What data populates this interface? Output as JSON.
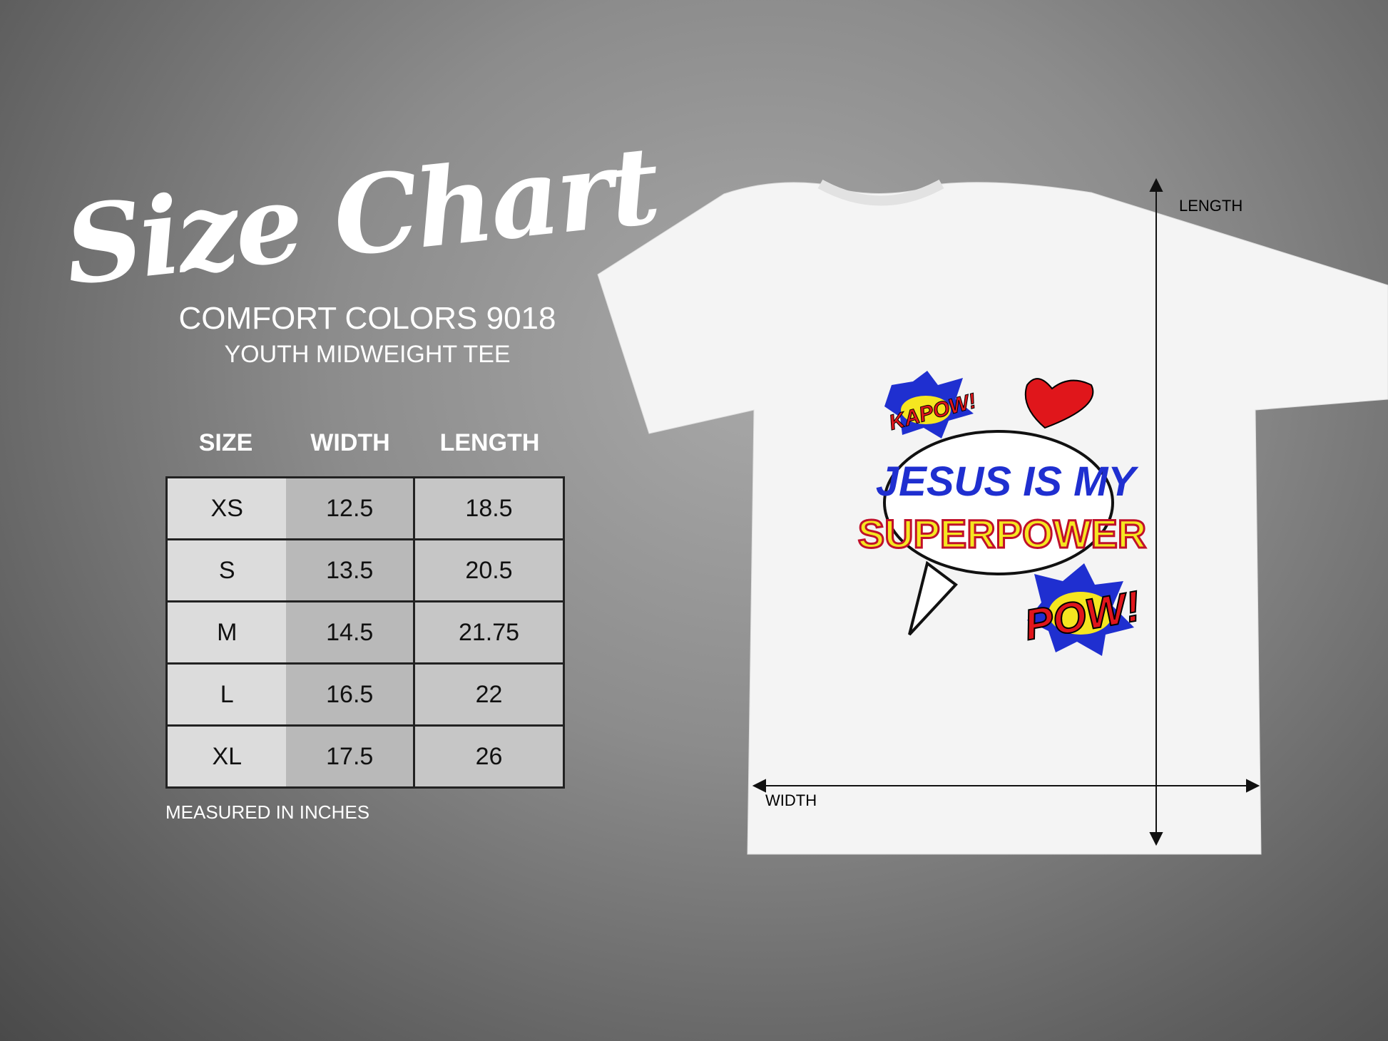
{
  "title": "Size Chart",
  "brand": "COMFORT COLORS 9018",
  "subtitle": "YOUTH MIDWEIGHT TEE",
  "table": {
    "headers": [
      "SIZE",
      "WIDTH",
      "LENGTH"
    ],
    "rows": [
      [
        "XS",
        "12.5",
        "18.5"
      ],
      [
        "S",
        "13.5",
        "20.5"
      ],
      [
        "M",
        "14.5",
        "21.75"
      ],
      [
        "L",
        "16.5",
        "22"
      ],
      [
        "XL",
        "17.5",
        "26"
      ]
    ]
  },
  "note": "MEASURED IN INCHES",
  "shirt": {
    "length_label": "LENGTH",
    "width_label": "WIDTH",
    "graphic": {
      "kapow": "KAPOW!",
      "line1": "JESUS IS MY",
      "line2": "SUPERPOWER",
      "pow": "POW!"
    },
    "colors": {
      "blue": "#1f2fd0",
      "yellow": "#f5e620",
      "red": "#e0161b"
    }
  }
}
